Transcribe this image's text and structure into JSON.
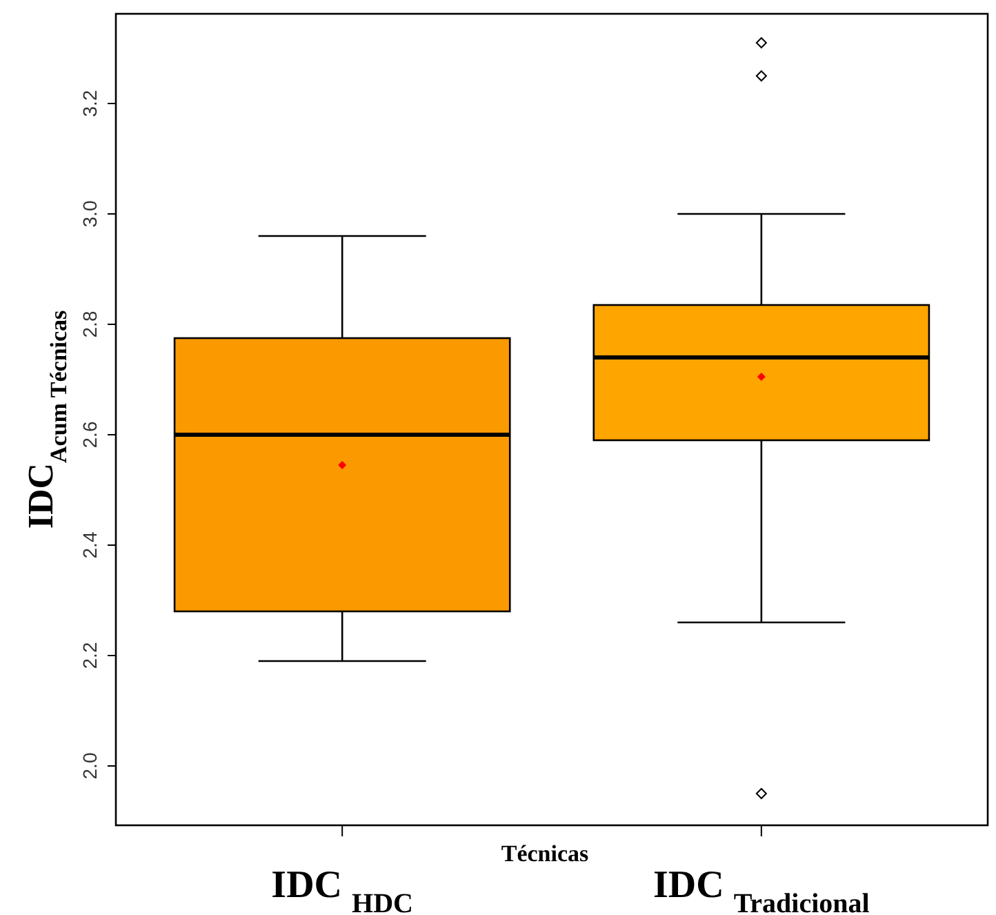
{
  "chart_data": {
    "type": "box",
    "xlabel": "Técnicas",
    "ylabel": "IDC$_{Acum Técnicas}$",
    "categories": [
      "IDC $_{HDC}$",
      "IDC $_{Tradicional}$"
    ],
    "colors": [
      "#fa9a00",
      "#ffa500"
    ],
    "boxes": [
      {
        "low": 2.19,
        "q1": 2.28,
        "median": 2.6,
        "q3": 2.775,
        "high": 2.96,
        "mean": 2.545
      },
      {
        "low": 2.26,
        "q1": 2.59,
        "median": 2.74,
        "q3": 2.835,
        "high": 3.0,
        "mean": 2.705,
        "outliers": [
          3.31,
          3.25,
          1.95
        ]
      }
    ],
    "ylim": [
      1.8925,
      3.3625
    ],
    "yticks": [
      {
        "value": 2,
        "label": "2.0"
      },
      2.2,
      2.4,
      2.6,
      2.8,
      {
        "value": 3,
        "label": "3.0"
      },
      3.2
    ],
    "grid": false
  }
}
